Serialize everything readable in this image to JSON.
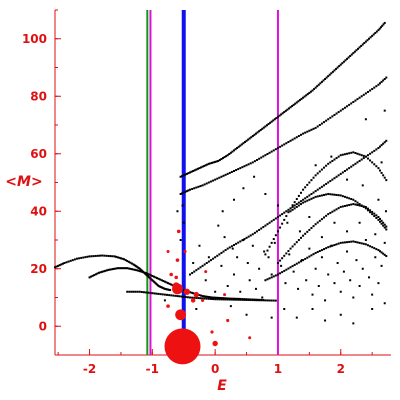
{
  "chart_data": {
    "type": "scatter",
    "title": "",
    "xlabel": "E",
    "ylabel": "<M>",
    "xlim": [
      -2.55,
      2.8
    ],
    "ylim": [
      -10,
      110
    ],
    "grid": false,
    "colors": {
      "axis": "#dd1111",
      "labels": "#dd1111",
      "points": "#000000",
      "highlight": "#ee1111",
      "thick_line": "#1111ee",
      "green_line": "#119911",
      "magenta_line": "#dd11dd"
    },
    "x_ticks": [
      {
        "value": -2,
        "label": "-2"
      },
      {
        "value": -1,
        "label": "-1"
      },
      {
        "value": 0,
        "label": "0"
      },
      {
        "value": 1,
        "label": "1"
      },
      {
        "value": 2,
        "label": "2"
      }
    ],
    "y_ticks": [
      {
        "value": 0,
        "label": "0"
      },
      {
        "value": 20,
        "label": "20"
      },
      {
        "value": 40,
        "label": "40"
      },
      {
        "value": 60,
        "label": "60"
      },
      {
        "value": 80,
        "label": "80"
      },
      {
        "value": 100,
        "label": "100"
      }
    ],
    "vertical_lines": [
      {
        "name": "green-line",
        "x": -1.08,
        "color": "#119911"
      },
      {
        "name": "magenta-line-left",
        "x": -1.03,
        "color": "#dd11dd"
      },
      {
        "name": "blue-line",
        "x": -0.5,
        "color": "#1111ee"
      },
      {
        "name": "magenta-line-right",
        "x": 1.0,
        "color": "#dd11dd"
      }
    ],
    "highlight_points": [
      {
        "x": -0.52,
        "y": -7,
        "size": 4
      },
      {
        "x": -0.55,
        "y": 4,
        "size": 1.2
      },
      {
        "x": -0.6,
        "y": 13,
        "size": 1.2
      },
      {
        "x": -0.62,
        "y": 14,
        "size": 0.8
      },
      {
        "x": -0.45,
        "y": 12,
        "size": 0.7
      },
      {
        "x": -0.3,
        "y": 11,
        "size": 0.6
      },
      {
        "x": -0.35,
        "y": 9,
        "size": 0.5
      },
      {
        "x": -0.6,
        "y": 23,
        "size": 0.4
      },
      {
        "x": -0.58,
        "y": 33,
        "size": 0.4
      },
      {
        "x": -0.48,
        "y": 26,
        "size": 0.35
      },
      {
        "x": -0.75,
        "y": 7,
        "size": 0.4
      },
      {
        "x": -0.7,
        "y": 18,
        "size": 0.4
      },
      {
        "x": -0.62,
        "y": 17,
        "size": 0.4
      },
      {
        "x": -0.2,
        "y": 9,
        "size": 0.35
      },
      {
        "x": -0.15,
        "y": 19,
        "size": 0.3
      },
      {
        "x": -0.05,
        "y": -2,
        "size": 0.35
      },
      {
        "x": 0.0,
        "y": -6,
        "size": 0.6
      },
      {
        "x": 0.2,
        "y": 2,
        "size": 0.35
      },
      {
        "x": 0.15,
        "y": 11,
        "size": 0.3
      },
      {
        "x": 0.55,
        "y": -4,
        "size": 0.3
      },
      {
        "x": -0.75,
        "y": 26,
        "size": 0.3
      }
    ],
    "curves": [
      {
        "name": "left-arc-upper",
        "x": [
          -2.55,
          -2.4,
          -2.2,
          -2.0,
          -1.8,
          -1.6,
          -1.45,
          -1.3,
          -1.2,
          -1.1,
          -1.0,
          -0.9,
          -0.8,
          -0.7
        ],
        "y": [
          20.5,
          22,
          23.5,
          24.3,
          24.6,
          24.3,
          23.3,
          21.5,
          20,
          18,
          16,
          14,
          13,
          12.5
        ]
      },
      {
        "name": "left-arc-lower",
        "x": [
          -2.0,
          -1.85,
          -1.7,
          -1.55,
          -1.4,
          -1.25,
          -1.1,
          -0.95,
          -0.8,
          -0.65,
          -0.5,
          -0.35,
          -0.2,
          -0.05,
          0.1,
          0.25,
          0.4,
          0.6,
          0.8
        ],
        "y": [
          17,
          18.6,
          19.6,
          20.2,
          20.2,
          19.5,
          18.5,
          17,
          15.5,
          14,
          12.5,
          11.5,
          10.5,
          10,
          9.8,
          9.6,
          9.5,
          9.3,
          9.1
        ]
      },
      {
        "name": "left-arc-bottom",
        "x": [
          -1.4,
          -1.2,
          -1.0,
          -0.8,
          -0.6,
          -0.4,
          -0.2,
          0.0,
          0.2,
          0.4,
          0.6,
          0.8,
          1.0
        ],
        "y": [
          12,
          12,
          11.5,
          11,
          10.5,
          10,
          9.7,
          9.4,
          9.3,
          9.2,
          9.1,
          9.0,
          8.9
        ]
      },
      {
        "name": "upper-band",
        "x": [
          -0.55,
          -0.4,
          -0.25,
          -0.1,
          0.05,
          0.2,
          0.35,
          0.5,
          0.65,
          0.8,
          0.95,
          1.1,
          1.25,
          1.4,
          1.55,
          1.7,
          1.85,
          2.0,
          2.15,
          2.3,
          2.45,
          2.6,
          2.72
        ],
        "y": [
          52,
          53.5,
          55,
          56.5,
          57.5,
          59.5,
          62,
          64.5,
          67,
          69.5,
          72,
          74.5,
          77,
          79.5,
          82,
          85,
          88,
          91,
          94,
          97,
          100,
          103,
          106
        ]
      },
      {
        "name": "upper-band-2",
        "x": [
          -0.55,
          -0.4,
          -0.2,
          0.0,
          0.2,
          0.4,
          0.6,
          0.8,
          1.0,
          1.2,
          1.4,
          1.6,
          1.8,
          2.0,
          2.2,
          2.4,
          2.6,
          2.75
        ],
        "y": [
          46,
          47.5,
          49,
          51,
          53,
          55,
          57,
          59.5,
          62,
          64.5,
          67,
          69,
          72,
          75,
          78,
          81,
          84,
          87
        ]
      },
      {
        "name": "second-band",
        "x": [
          -0.4,
          -0.2,
          0.0,
          0.2,
          0.4,
          0.6,
          0.8,
          1.0,
          1.2,
          1.4,
          1.6,
          1.8,
          2.0,
          2.2,
          2.4,
          2.6,
          2.75
        ],
        "y": [
          18,
          21,
          24,
          27,
          29.5,
          32,
          35,
          38,
          41,
          44,
          47,
          50,
          53,
          56,
          59,
          62,
          65
        ]
      },
      {
        "name": "mid-arc",
        "x": [
          0.8,
          1.0,
          1.2,
          1.4,
          1.6,
          1.8,
          2.0,
          2.2,
          2.4,
          2.6,
          2.75
        ],
        "y": [
          25,
          33,
          41,
          47.5,
          52.5,
          56.5,
          59.5,
          60.5,
          59,
          55,
          50
        ]
      },
      {
        "name": "mid-arc-2",
        "x": [
          1.0,
          1.2,
          1.4,
          1.6,
          1.8,
          2.0,
          2.2,
          2.4,
          2.6,
          2.75
        ],
        "y": [
          22,
          27,
          31.5,
          35.5,
          39,
          41.5,
          42.5,
          41.5,
          38,
          34
        ]
      },
      {
        "name": "mid-arc-3",
        "x": [
          0.8,
          1.0,
          1.2,
          1.4,
          1.6,
          1.8,
          2.0,
          2.2,
          2.4,
          2.6,
          2.75
        ],
        "y": [
          16,
          18,
          20.5,
          23,
          25.5,
          27.5,
          29,
          29.5,
          28.5,
          26.5,
          24
        ]
      },
      {
        "name": "mid-arc-4",
        "x": [
          1.2,
          1.4,
          1.6,
          1.8,
          2.0,
          2.2,
          2.4,
          2.6,
          2.75
        ],
        "y": [
          40,
          43,
          45,
          46,
          45.5,
          44,
          41,
          37,
          33
        ]
      }
    ],
    "scatter": [
      [
        0.05,
        35
      ],
      [
        0.15,
        31
      ],
      [
        0.28,
        27
      ],
      [
        0.35,
        24
      ],
      [
        0.45,
        30
      ],
      [
        0.52,
        22
      ],
      [
        0.6,
        28
      ],
      [
        0.7,
        20
      ],
      [
        0.78,
        26
      ],
      [
        0.85,
        24
      ],
      [
        0.9,
        18
      ],
      [
        0.95,
        29
      ],
      [
        1.05,
        21
      ],
      [
        1.12,
        15
      ],
      [
        1.18,
        25
      ],
      [
        1.25,
        19
      ],
      [
        1.32,
        13
      ],
      [
        1.38,
        23
      ],
      [
        1.45,
        16
      ],
      [
        1.5,
        27
      ],
      [
        1.55,
        11
      ],
      [
        1.6,
        20
      ],
      [
        1.65,
        14
      ],
      [
        1.7,
        24
      ],
      [
        1.75,
        9
      ],
      [
        1.8,
        18
      ],
      [
        1.85,
        28
      ],
      [
        1.9,
        15
      ],
      [
        1.95,
        22
      ],
      [
        2.0,
        12
      ],
      [
        2.05,
        19
      ],
      [
        2.1,
        26
      ],
      [
        2.15,
        16
      ],
      [
        2.2,
        10
      ],
      [
        2.25,
        23
      ],
      [
        2.3,
        14
      ],
      [
        2.35,
        20
      ],
      [
        2.4,
        30
      ],
      [
        2.45,
        17
      ],
      [
        2.5,
        11
      ],
      [
        2.55,
        24
      ],
      [
        2.6,
        15
      ],
      [
        2.65,
        21
      ],
      [
        2.7,
        8
      ],
      [
        0.4,
        12
      ],
      [
        0.55,
        16
      ],
      [
        0.65,
        13
      ],
      [
        0.75,
        10
      ],
      [
        0.3,
        18
      ],
      [
        0.2,
        14
      ],
      [
        0.1,
        21
      ],
      [
        -0.1,
        24
      ],
      [
        -0.25,
        28
      ],
      [
        -0.35,
        22
      ],
      [
        0.12,
        40
      ],
      [
        0.3,
        44
      ],
      [
        0.9,
        3
      ],
      [
        1.1,
        6
      ],
      [
        1.3,
        3
      ],
      [
        1.55,
        6
      ],
      [
        1.75,
        2
      ],
      [
        2.0,
        4
      ],
      [
        2.2,
        1
      ],
      [
        2.5,
        6
      ],
      [
        1.0,
        42
      ],
      [
        1.15,
        36
      ],
      [
        1.35,
        33
      ],
      [
        1.5,
        38
      ],
      [
        1.7,
        31
      ],
      [
        1.9,
        36
      ],
      [
        2.1,
        33
      ],
      [
        2.3,
        36
      ],
      [
        2.55,
        32
      ],
      [
        2.7,
        29
      ],
      [
        1.6,
        56
      ],
      [
        1.85,
        59
      ],
      [
        2.1,
        51
      ],
      [
        2.35,
        49
      ],
      [
        2.6,
        44
      ],
      [
        2.72,
        40
      ],
      [
        0.45,
        48
      ],
      [
        0.62,
        52
      ],
      [
        0.8,
        46
      ],
      [
        -0.15,
        16
      ],
      [
        0.0,
        12
      ],
      [
        -0.8,
        9
      ],
      [
        -0.3,
        6
      ],
      [
        0.25,
        7
      ],
      [
        0.5,
        4
      ],
      [
        2.65,
        57
      ],
      [
        2.4,
        72
      ],
      [
        2.7,
        75
      ],
      [
        -0.52,
        42
      ],
      [
        -0.5,
        36
      ],
      [
        -0.55,
        30
      ],
      [
        -0.6,
        40
      ]
    ]
  }
}
